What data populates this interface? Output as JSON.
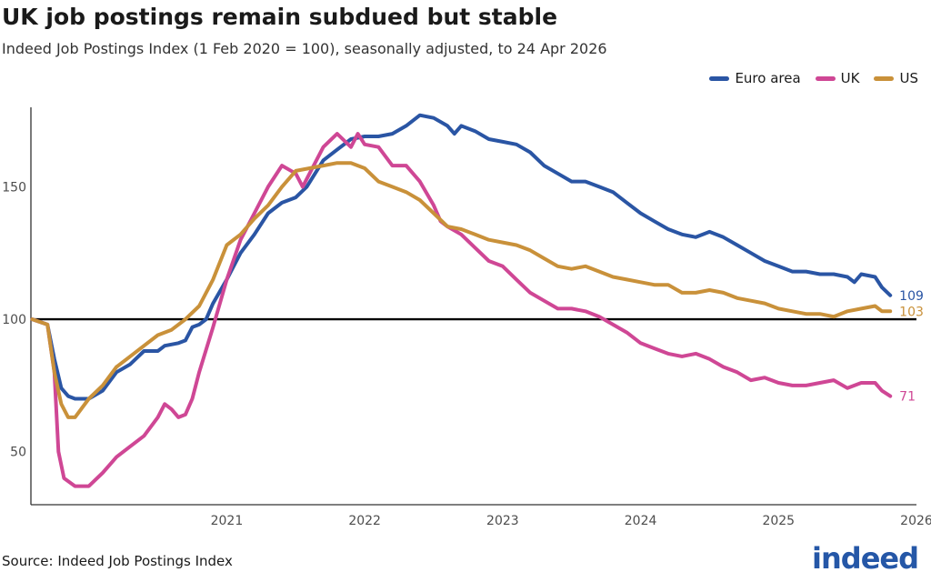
{
  "chart_data": {
    "type": "line",
    "title": "UK job postings remain subdued but stable",
    "subtitle": "Indeed Job Postings Index (1 Feb 2020 = 100), seasonally adjusted, to 24 Apr 2026",
    "xlabel": "",
    "ylabel": "",
    "x_ticks": [
      "2021",
      "2022",
      "2023",
      "2024",
      "2025",
      "2026"
    ],
    "y_ticks": [
      50,
      100,
      150
    ],
    "xlim": [
      2020.08,
      2026.5
    ],
    "ylim": [
      30,
      180
    ],
    "reference_line": 100,
    "grid": false,
    "legend_position": "top-right",
    "series": [
      {
        "name": "Euro area",
        "color": "#2a55a4",
        "end_label": "109",
        "points": [
          [
            2020.09,
            100
          ],
          [
            2020.2,
            98
          ],
          [
            2020.25,
            85
          ],
          [
            2020.3,
            74
          ],
          [
            2020.35,
            71
          ],
          [
            2020.4,
            70
          ],
          [
            2020.5,
            70
          ],
          [
            2020.6,
            73
          ],
          [
            2020.7,
            80
          ],
          [
            2020.8,
            83
          ],
          [
            2020.9,
            88
          ],
          [
            2021.0,
            88
          ],
          [
            2021.05,
            90
          ],
          [
            2021.15,
            91
          ],
          [
            2021.2,
            92
          ],
          [
            2021.25,
            97
          ],
          [
            2021.3,
            98
          ],
          [
            2021.35,
            100
          ],
          [
            2021.4,
            106
          ],
          [
            2021.5,
            115
          ],
          [
            2021.6,
            125
          ],
          [
            2021.7,
            132
          ],
          [
            2021.8,
            140
          ],
          [
            2021.9,
            144
          ],
          [
            2022.0,
            146
          ],
          [
            2022.08,
            150
          ],
          [
            2022.2,
            160
          ],
          [
            2022.3,
            164
          ],
          [
            2022.4,
            168
          ],
          [
            2022.5,
            169
          ],
          [
            2022.6,
            169
          ],
          [
            2022.7,
            170
          ],
          [
            2022.8,
            173
          ],
          [
            2022.9,
            177
          ],
          [
            2023.0,
            176
          ],
          [
            2023.1,
            173
          ],
          [
            2023.15,
            170
          ],
          [
            2023.2,
            173
          ],
          [
            2023.3,
            171
          ],
          [
            2023.4,
            168
          ],
          [
            2023.5,
            167
          ],
          [
            2023.6,
            166
          ],
          [
            2023.7,
            163
          ],
          [
            2023.8,
            158
          ],
          [
            2023.9,
            155
          ],
          [
            2024.0,
            152
          ],
          [
            2024.1,
            152
          ],
          [
            2024.2,
            150
          ],
          [
            2024.3,
            148
          ],
          [
            2024.4,
            144
          ],
          [
            2024.5,
            140
          ],
          [
            2024.6,
            137
          ],
          [
            2024.7,
            134
          ],
          [
            2024.8,
            132
          ],
          [
            2024.9,
            131
          ],
          [
            2025.0,
            133
          ],
          [
            2025.1,
            131
          ],
          [
            2025.2,
            128
          ],
          [
            2025.3,
            125
          ],
          [
            2025.4,
            122
          ],
          [
            2025.5,
            120
          ],
          [
            2025.6,
            118
          ],
          [
            2025.7,
            118
          ],
          [
            2025.8,
            117
          ],
          [
            2025.9,
            117
          ],
          [
            2026.0,
            116
          ],
          [
            2026.05,
            114
          ],
          [
            2026.1,
            117
          ],
          [
            2026.2,
            116
          ],
          [
            2026.25,
            112
          ],
          [
            2026.31,
            109
          ]
        ]
      },
      {
        "name": "UK",
        "color": "#cf4795",
        "end_label": "71",
        "points": [
          [
            2020.09,
            100
          ],
          [
            2020.2,
            98
          ],
          [
            2020.25,
            80
          ],
          [
            2020.28,
            50
          ],
          [
            2020.32,
            40
          ],
          [
            2020.4,
            37
          ],
          [
            2020.5,
            37
          ],
          [
            2020.6,
            42
          ],
          [
            2020.7,
            48
          ],
          [
            2020.8,
            52
          ],
          [
            2020.9,
            56
          ],
          [
            2021.0,
            63
          ],
          [
            2021.05,
            68
          ],
          [
            2021.1,
            66
          ],
          [
            2021.15,
            63
          ],
          [
            2021.2,
            64
          ],
          [
            2021.25,
            70
          ],
          [
            2021.3,
            80
          ],
          [
            2021.4,
            97
          ],
          [
            2021.5,
            115
          ],
          [
            2021.6,
            130
          ],
          [
            2021.7,
            140
          ],
          [
            2021.8,
            150
          ],
          [
            2021.9,
            158
          ],
          [
            2022.0,
            155
          ],
          [
            2022.05,
            150
          ],
          [
            2022.1,
            155
          ],
          [
            2022.2,
            165
          ],
          [
            2022.3,
            170
          ],
          [
            2022.4,
            165
          ],
          [
            2022.45,
            170
          ],
          [
            2022.5,
            166
          ],
          [
            2022.6,
            165
          ],
          [
            2022.7,
            158
          ],
          [
            2022.8,
            158
          ],
          [
            2022.9,
            152
          ],
          [
            2023.0,
            143
          ],
          [
            2023.05,
            137
          ],
          [
            2023.1,
            135
          ],
          [
            2023.2,
            132
          ],
          [
            2023.3,
            127
          ],
          [
            2023.4,
            122
          ],
          [
            2023.5,
            120
          ],
          [
            2023.6,
            115
          ],
          [
            2023.7,
            110
          ],
          [
            2023.8,
            107
          ],
          [
            2023.9,
            104
          ],
          [
            2024.0,
            104
          ],
          [
            2024.1,
            103
          ],
          [
            2024.2,
            101
          ],
          [
            2024.3,
            98
          ],
          [
            2024.4,
            95
          ],
          [
            2024.5,
            91
          ],
          [
            2024.6,
            89
          ],
          [
            2024.7,
            87
          ],
          [
            2024.8,
            86
          ],
          [
            2024.9,
            87
          ],
          [
            2025.0,
            85
          ],
          [
            2025.1,
            82
          ],
          [
            2025.2,
            80
          ],
          [
            2025.3,
            77
          ],
          [
            2025.4,
            78
          ],
          [
            2025.5,
            76
          ],
          [
            2025.6,
            75
          ],
          [
            2025.7,
            75
          ],
          [
            2025.8,
            76
          ],
          [
            2025.9,
            77
          ],
          [
            2026.0,
            74
          ],
          [
            2026.05,
            75
          ],
          [
            2026.1,
            76
          ],
          [
            2026.2,
            76
          ],
          [
            2026.25,
            73
          ],
          [
            2026.31,
            71
          ]
        ]
      },
      {
        "name": "US",
        "color": "#c9913a",
        "end_label": "103",
        "points": [
          [
            2020.09,
            100
          ],
          [
            2020.2,
            98
          ],
          [
            2020.25,
            80
          ],
          [
            2020.3,
            68
          ],
          [
            2020.35,
            63
          ],
          [
            2020.4,
            63
          ],
          [
            2020.5,
            70
          ],
          [
            2020.6,
            75
          ],
          [
            2020.7,
            82
          ],
          [
            2020.8,
            86
          ],
          [
            2020.9,
            90
          ],
          [
            2021.0,
            94
          ],
          [
            2021.1,
            96
          ],
          [
            2021.2,
            100
          ],
          [
            2021.3,
            105
          ],
          [
            2021.4,
            115
          ],
          [
            2021.5,
            128
          ],
          [
            2021.6,
            132
          ],
          [
            2021.7,
            138
          ],
          [
            2021.8,
            143
          ],
          [
            2021.9,
            150
          ],
          [
            2022.0,
            156
          ],
          [
            2022.1,
            157
          ],
          [
            2022.2,
            158
          ],
          [
            2022.3,
            159
          ],
          [
            2022.4,
            159
          ],
          [
            2022.5,
            157
          ],
          [
            2022.6,
            152
          ],
          [
            2022.7,
            150
          ],
          [
            2022.8,
            148
          ],
          [
            2022.9,
            145
          ],
          [
            2023.0,
            140
          ],
          [
            2023.1,
            135
          ],
          [
            2023.2,
            134
          ],
          [
            2023.3,
            132
          ],
          [
            2023.4,
            130
          ],
          [
            2023.5,
            129
          ],
          [
            2023.6,
            128
          ],
          [
            2023.7,
            126
          ],
          [
            2023.8,
            123
          ],
          [
            2023.9,
            120
          ],
          [
            2024.0,
            119
          ],
          [
            2024.1,
            120
          ],
          [
            2024.2,
            118
          ],
          [
            2024.3,
            116
          ],
          [
            2024.4,
            115
          ],
          [
            2024.5,
            114
          ],
          [
            2024.6,
            113
          ],
          [
            2024.7,
            113
          ],
          [
            2024.8,
            110
          ],
          [
            2024.9,
            110
          ],
          [
            2025.0,
            111
          ],
          [
            2025.1,
            110
          ],
          [
            2025.2,
            108
          ],
          [
            2025.3,
            107
          ],
          [
            2025.4,
            106
          ],
          [
            2025.5,
            104
          ],
          [
            2025.6,
            103
          ],
          [
            2025.7,
            102
          ],
          [
            2025.8,
            102
          ],
          [
            2025.9,
            101
          ],
          [
            2026.0,
            103
          ],
          [
            2026.1,
            104
          ],
          [
            2026.2,
            105
          ],
          [
            2026.25,
            103
          ],
          [
            2026.31,
            103
          ]
        ]
      }
    ]
  },
  "footer": {
    "source": "Source: Indeed Job Postings Index",
    "logo_text": "indeed"
  }
}
